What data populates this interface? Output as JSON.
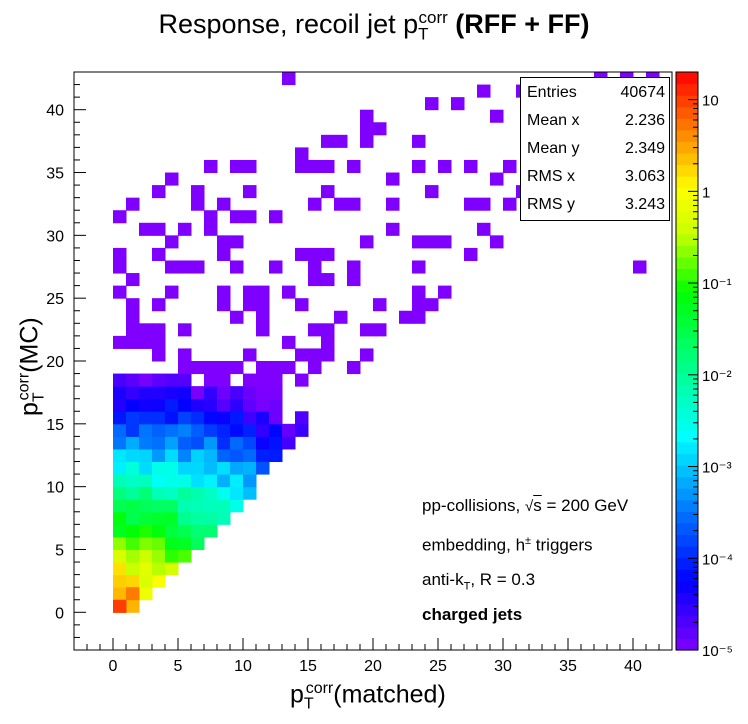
{
  "chart_data": {
    "type": "heatmap",
    "title": "Response, recoil jet p",
    "title_sub": "T",
    "title_sup": "corr",
    "title_suffix": "(RFF + FF)",
    "xlabel": "p",
    "xlabel_sub": "T",
    "xlabel_sup": "corr",
    "xlabel_suffix": "(matched)",
    "ylabel": "p",
    "ylabel_sub": "T",
    "ylabel_sup": "corr",
    "ylabel_suffix": "(MC)",
    "xlim": [
      -3,
      43
    ],
    "ylim": [
      -3,
      43
    ],
    "x_ticks": [
      "0",
      "5",
      "10",
      "15",
      "20",
      "25",
      "30",
      "35",
      "40"
    ],
    "y_ticks": [
      "0",
      "5",
      "10",
      "15",
      "20",
      "25",
      "30",
      "35",
      "40"
    ],
    "z_scale": "log",
    "z_range": [
      1e-05,
      20
    ],
    "z_ticks": [
      "10",
      "1",
      "10⁻¹",
      "10⁻²",
      "10⁻³",
      "10⁻⁴",
      "10⁻⁵"
    ],
    "stats": {
      "Entries": "40674",
      "Mean x": "2.236",
      "Mean y": "2.349",
      "RMS x": "3.063",
      "RMS y": "3.243"
    },
    "annotations": [
      "pp-collisions, √s = 200 GeV",
      "embedding, h± triggers",
      "anti-kT, R = 0.3",
      "charged jets"
    ],
    "bin_width": 1,
    "notable_bins": [
      {
        "x": 0.5,
        "y": 0.5,
        "z": 10
      },
      {
        "x": 1.5,
        "y": 1.5,
        "z": 5
      },
      {
        "x": 2.5,
        "y": 2.5,
        "z": 0.5
      },
      {
        "x": 13.5,
        "y": 42.5,
        "z": 1e-05
      },
      {
        "x": 40.5,
        "y": 27.5,
        "z": 1e-05
      }
    ]
  },
  "stats_labels": {
    "entries": "Entries",
    "entries_v": "40674",
    "meanx": "Mean x",
    "meanx_v": "2.236",
    "meany": "Mean y",
    "meany_v": "2.349",
    "rmsx": "RMS x",
    "rmsx_v": "3.063",
    "rmsy": "RMS y",
    "rmsy_v": "3.243"
  },
  "ann": {
    "l1a": "pp-collisions, ",
    "l1b": "s",
    "l1c": " = 200 GeV",
    "l2a": "embedding, h",
    "l2b": "±",
    "l2c": " triggers",
    "l3a": "anti-k",
    "l3b": "T",
    "l3c": ", R = 0.3",
    "l4": "charged jets"
  }
}
